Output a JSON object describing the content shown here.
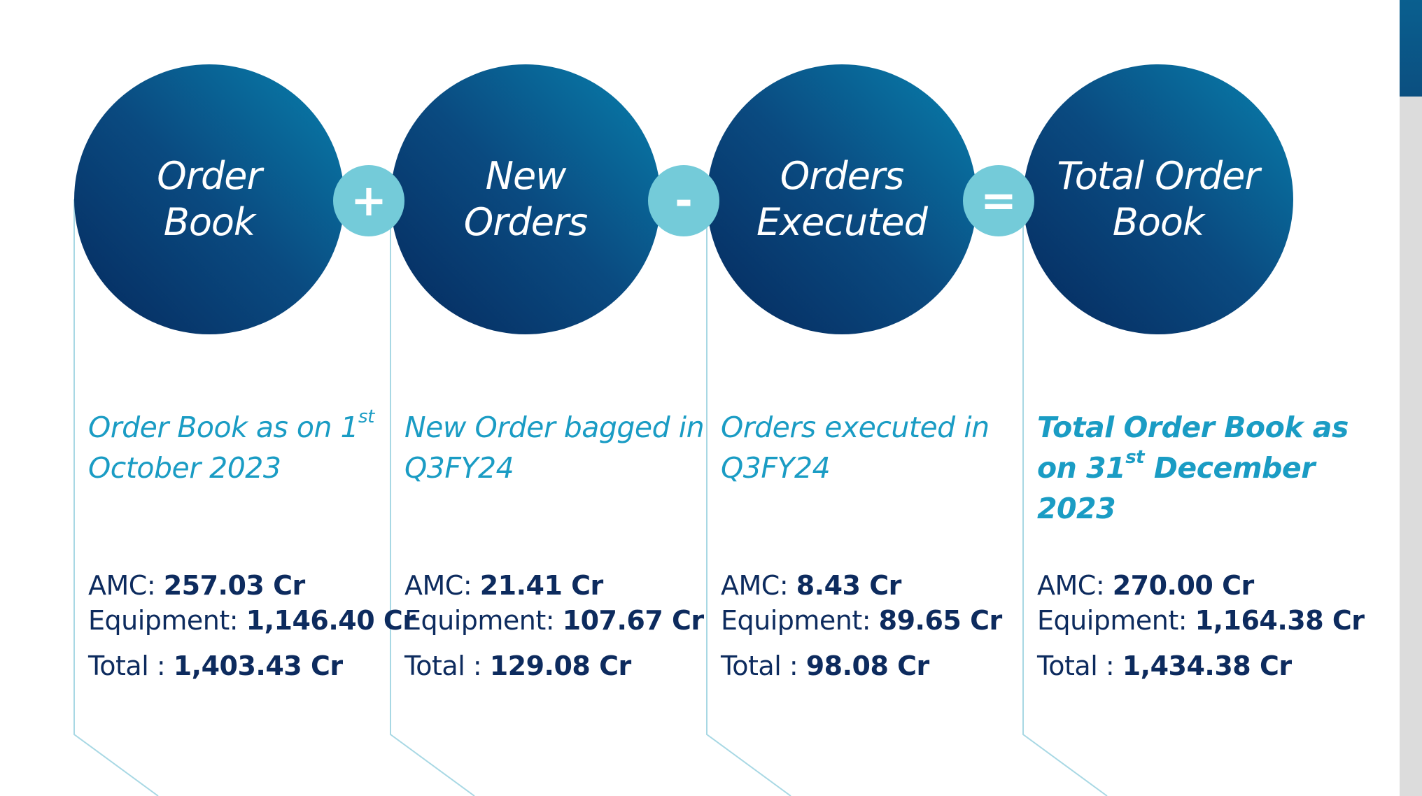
{
  "accent_colors": {
    "circle_dark": "#052a5e",
    "circle_light": "#0880ad",
    "operator": "#74cbd9",
    "description_text": "#1a9cc4",
    "value_text": "#0d2b5e"
  },
  "steps": [
    {
      "circle_label": "Order\nBook",
      "description_pre": "Order Book as on 1",
      "description_sup": "st",
      "description_post": " October 2023",
      "amc_label": "AMC:",
      "amc_value": "257.03 Cr",
      "equipment_label": "Equipment:",
      "equipment_value": "1,146.40 Cr",
      "total_label": "Total :",
      "total_value": "1,403.43 Cr"
    },
    {
      "circle_label": "New\nOrders",
      "description_pre": "New Order bagged in Q3FY24",
      "description_sup": "",
      "description_post": "",
      "amc_label": "AMC:",
      "amc_value": "21.41 Cr",
      "equipment_label": "Equipment:",
      "equipment_value": "107.67 Cr",
      "total_label": "Total :",
      "total_value": "129.08 Cr"
    },
    {
      "circle_label": "Orders\nExecuted",
      "description_pre": "Orders executed in Q3FY24",
      "description_sup": "",
      "description_post": "",
      "amc_label": "AMC:",
      "amc_value": "8.43 Cr",
      "equipment_label": "Equipment:",
      "equipment_value": "89.65 Cr",
      "total_label": "Total :",
      "total_value": "98.08 Cr"
    },
    {
      "circle_label": "Total Order\nBook",
      "description_pre": "Total Order Book as on 31",
      "description_sup": "st",
      "description_post": " December 2023",
      "amc_label": "AMC:",
      "amc_value": "270.00 Cr",
      "equipment_label": "Equipment:",
      "equipment_value": "1,164.38 Cr",
      "total_label": "Total :",
      "total_value": "1,434.38 Cr"
    }
  ],
  "operators": [
    {
      "symbol": "+",
      "icon": "plus-icon"
    },
    {
      "symbol": "-",
      "icon": "minus-icon"
    },
    {
      "symbol": "=",
      "icon": "equals-icon"
    }
  ]
}
